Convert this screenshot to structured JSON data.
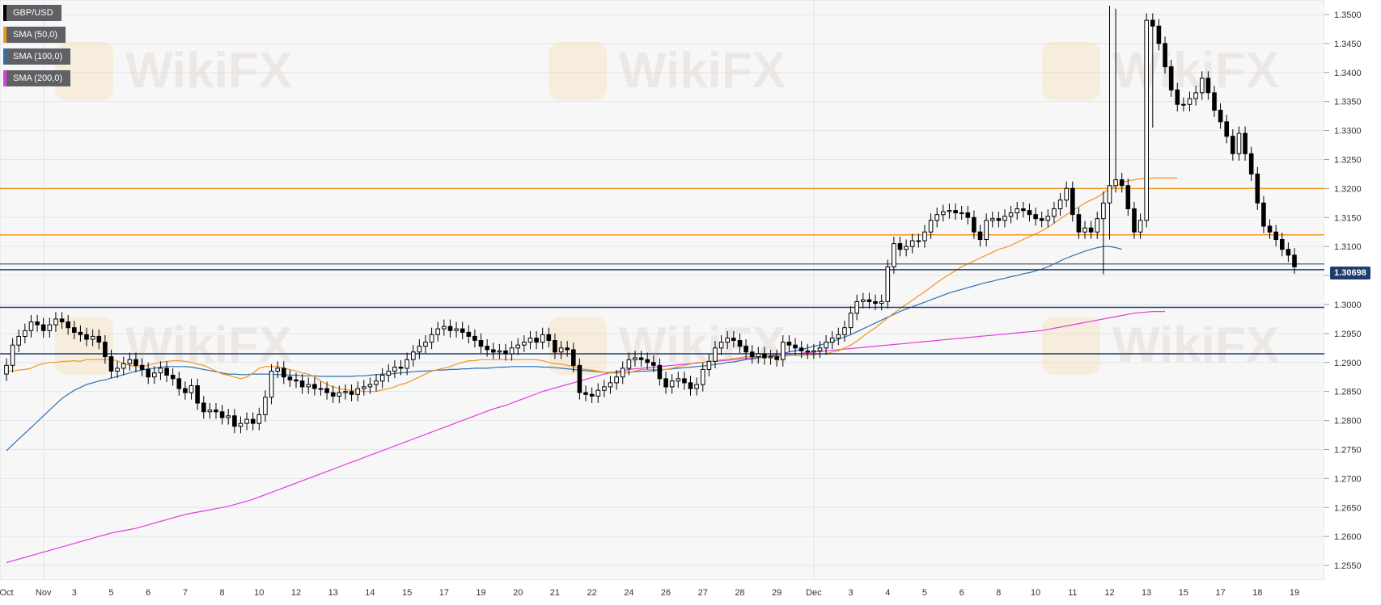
{
  "legend": [
    {
      "label": "GBP/USD",
      "color": "#000000"
    },
    {
      "label": "SMA (50,0)",
      "color": "#f2961e"
    },
    {
      "label": "SMA (100,0)",
      "color": "#2f6fb0"
    },
    {
      "label": "SMA (200,0)",
      "color": "#e23be0"
    }
  ],
  "watermark": "WikiFX",
  "current_price": "1.30698",
  "chart_data": {
    "type": "candlestick",
    "symbol": "GBP/USD",
    "y_ticks": [
      "1.3500",
      "1.3450",
      "1.3400",
      "1.3350",
      "1.3300",
      "1.3250",
      "1.3200",
      "1.3150",
      "1.3100",
      "1.3050",
      "1.3000",
      "1.2950",
      "1.2900",
      "1.2850",
      "1.2800",
      "1.2750",
      "1.2700",
      "1.2650",
      "1.2600",
      "1.2550"
    ],
    "ylim": [
      1.2525,
      1.3525
    ],
    "x_ticks": [
      {
        "i": 0,
        "label": "Oct"
      },
      {
        "i": 6,
        "label": "Nov"
      },
      {
        "i": 11,
        "label": "3"
      },
      {
        "i": 17,
        "label": "5"
      },
      {
        "i": 23,
        "label": "6"
      },
      {
        "i": 29,
        "label": "7"
      },
      {
        "i": 35,
        "label": "8"
      },
      {
        "i": 41,
        "label": "10"
      },
      {
        "i": 47,
        "label": "12"
      },
      {
        "i": 53,
        "label": "13"
      },
      {
        "i": 59,
        "label": "14"
      },
      {
        "i": 65,
        "label": "15"
      },
      {
        "i": 71,
        "label": "17"
      },
      {
        "i": 77,
        "label": "19"
      },
      {
        "i": 83,
        "label": "20"
      },
      {
        "i": 89,
        "label": "21"
      },
      {
        "i": 95,
        "label": "22"
      },
      {
        "i": 101,
        "label": "24"
      },
      {
        "i": 107,
        "label": "26"
      },
      {
        "i": 113,
        "label": "27"
      },
      {
        "i": 119,
        "label": "28"
      },
      {
        "i": 125,
        "label": "29"
      },
      {
        "i": 131,
        "label": "Dec"
      },
      {
        "i": 137,
        "label": "3"
      },
      {
        "i": 143,
        "label": "4"
      },
      {
        "i": 149,
        "label": "5"
      },
      {
        "i": 155,
        "label": "6"
      },
      {
        "i": 161,
        "label": "8"
      },
      {
        "i": 167,
        "label": "10"
      },
      {
        "i": 173,
        "label": "11"
      },
      {
        "i": 179,
        "label": "12"
      },
      {
        "i": 185,
        "label": "13"
      },
      {
        "i": 191,
        "label": "15"
      },
      {
        "i": 197,
        "label": "17"
      },
      {
        "i": 203,
        "label": "18"
      },
      {
        "i": 209,
        "label": "19"
      }
    ],
    "horizontal_levels": [
      {
        "value": 1.32,
        "color": "#f2961e"
      },
      {
        "value": 1.312,
        "color": "#f2961e"
      },
      {
        "value": 1.306,
        "color": "#1c3d6e"
      },
      {
        "value": 1.307,
        "color": "#6b7683"
      },
      {
        "value": 1.2995,
        "color": "#1c3d6e"
      },
      {
        "value": 1.2915,
        "color": "#1c3d6e"
      }
    ],
    "close": [
      1.2895,
      1.293,
      1.2945,
      1.2955,
      1.297,
      1.2965,
      1.2955,
      1.2965,
      1.2975,
      1.297,
      1.296,
      1.2952,
      1.2948,
      1.294,
      1.2945,
      1.2935,
      1.291,
      1.2885,
      1.289,
      1.2898,
      1.2905,
      1.2895,
      1.2888,
      1.2875,
      1.2882,
      1.289,
      1.2878,
      1.2872,
      1.2855,
      1.2848,
      1.286,
      1.283,
      1.2815,
      1.2818,
      1.2815,
      1.2805,
      1.2808,
      1.279,
      1.2795,
      1.2802,
      1.2795,
      1.281,
      1.284,
      1.2885,
      1.289,
      1.2875,
      1.287,
      1.2868,
      1.2858,
      1.2862,
      1.2855,
      1.2855,
      1.2848,
      1.2842,
      1.2848,
      1.285,
      1.2845,
      1.2855,
      1.2858,
      1.2862,
      1.2868,
      1.2878,
      1.2885,
      1.2892,
      1.289,
      1.2905,
      1.2918,
      1.2928,
      1.2935,
      1.2948,
      1.2958,
      1.2962,
      1.2955,
      1.2958,
      1.2952,
      1.2945,
      1.2938,
      1.2928,
      1.2922,
      1.2918,
      1.292,
      1.2915,
      1.2925,
      1.293,
      1.2935,
      1.2942,
      1.2935,
      1.2948,
      1.2938,
      1.2918,
      1.2925,
      1.2922,
      1.2895,
      1.2848,
      1.2845,
      1.2842,
      1.2852,
      1.2858,
      1.2865,
      1.2875,
      1.289,
      1.2905,
      1.2908,
      1.2905,
      1.29,
      1.2895,
      1.2872,
      1.2858,
      1.2868,
      1.2872,
      1.2865,
      1.2855,
      1.2862,
      1.2888,
      1.2902,
      1.2925,
      1.2935,
      1.2942,
      1.2938,
      1.2928,
      1.2918,
      1.291,
      1.2915,
      1.2908,
      1.291,
      1.2905,
      1.2935,
      1.293,
      1.2925,
      1.292,
      1.2918,
      1.292,
      1.2925,
      1.2935,
      1.2942,
      1.2948,
      1.296,
      1.2985,
      1.3005,
      1.3008,
      1.3005,
      1.3002,
      1.3005,
      1.3065,
      1.3105,
      1.3095,
      1.31,
      1.311,
      1.311,
      1.3125,
      1.3145,
      1.3155,
      1.316,
      1.3162,
      1.3158,
      1.3158,
      1.315,
      1.3125,
      1.3112,
      1.3145,
      1.3148,
      1.3145,
      1.3152,
      1.3158,
      1.3165,
      1.3162,
      1.3155,
      1.3148,
      1.3145,
      1.3152,
      1.3165,
      1.318,
      1.32,
      1.3155,
      1.3125,
      1.3132,
      1.3125,
      1.3148,
      1.3175,
      1.3205,
      1.3215,
      1.3205,
      1.3165,
      1.3125,
      1.3145,
      1.349,
      1.348,
      1.345,
      1.341,
      1.337,
      1.3345,
      1.3345,
      1.3355,
      1.3365,
      1.339,
      1.3365,
      1.3335,
      1.3315,
      1.329,
      1.326,
      1.3295,
      1.326,
      1.3225,
      1.3175,
      1.3135,
      1.3125,
      1.3112,
      1.3095,
      1.3085,
      1.3065
    ],
    "sma50": [
      1.2885,
      1.2885,
      1.2887,
      1.2888,
      1.289,
      1.2895,
      1.2898,
      1.29,
      1.29,
      1.2902,
      1.2902,
      1.2903,
      1.2902,
      1.2905,
      1.2905,
      1.2905,
      1.2905,
      1.2905,
      1.2903,
      1.2898,
      1.2895,
      1.2893,
      1.2893,
      1.2895,
      1.2898,
      1.29,
      1.2902,
      1.2903,
      1.2903,
      1.2902,
      1.29,
      1.2897,
      1.2895,
      1.289,
      1.2885,
      1.288,
      1.2878,
      1.2875,
      1.2872,
      1.2875,
      1.2882,
      1.289,
      1.2893,
      1.2893,
      1.2893,
      1.289,
      1.2888,
      1.2885,
      1.2882,
      1.288,
      1.2875,
      1.2868,
      1.2862,
      1.2858,
      1.2855,
      1.2853,
      1.2852,
      1.2852,
      1.285,
      1.285,
      1.285,
      1.2853,
      1.2855,
      1.2858,
      1.2862,
      1.2865,
      1.287,
      1.2875,
      1.288,
      1.2885,
      1.2888,
      1.289,
      1.2893,
      1.2897,
      1.29,
      1.2903,
      1.2903,
      1.2905,
      1.2905,
      1.2905,
      1.2905,
      1.2905,
      1.2905,
      1.2905,
      1.2905,
      1.2905,
      1.2905,
      1.2903,
      1.29,
      1.2898,
      1.2897,
      1.2895,
      1.2893,
      1.289,
      1.2888,
      1.2887,
      1.2885,
      1.2883,
      1.2882,
      1.2882,
      1.2882,
      1.2883,
      1.2885,
      1.2888,
      1.2888,
      1.2888,
      1.2888,
      1.2888,
      1.289,
      1.2893,
      1.2895,
      1.2897,
      1.29,
      1.29,
      1.2902,
      1.2902,
      1.2905,
      1.2905,
      1.2907,
      1.2908,
      1.291,
      1.291,
      1.291,
      1.291,
      1.291,
      1.291,
      1.291,
      1.2912,
      1.2912,
      1.2912,
      1.2913,
      1.2913,
      1.2915,
      1.2915,
      1.2918,
      1.292,
      1.2925,
      1.293,
      1.2937,
      1.2945,
      1.2953,
      1.296,
      1.2968,
      1.2977,
      1.2985,
      1.2993,
      1.3,
      1.3007,
      1.3015,
      1.3022,
      1.303,
      1.3038,
      1.3045,
      1.3052,
      1.3058,
      1.3065,
      1.307,
      1.3075,
      1.308,
      1.3085,
      1.309,
      1.3095,
      1.3098,
      1.3102,
      1.3107,
      1.3112,
      1.3117,
      1.3122,
      1.3127,
      1.3133,
      1.314,
      1.3148,
      1.3155,
      1.3162,
      1.3168,
      1.3175,
      1.318,
      1.3185,
      1.3192,
      1.32,
      1.3205,
      1.321,
      1.3213,
      1.3215,
      1.3217,
      1.3217,
      1.3218,
      1.3218,
      1.3218,
      1.3218,
      1.3218
    ],
    "sma100": [
      1.2748,
      1.2758,
      1.2768,
      1.2778,
      1.2788,
      1.2798,
      1.2808,
      1.2818,
      1.2828,
      1.2838,
      1.2845,
      1.2852,
      1.2857,
      1.2862,
      1.2865,
      1.2868,
      1.287,
      1.2873,
      1.2876,
      1.2879,
      1.2882,
      1.2885,
      1.2887,
      1.2889,
      1.289,
      1.2892,
      1.2893,
      1.2893,
      1.2893,
      1.2893,
      1.2892,
      1.289,
      1.2888,
      1.2886,
      1.2884,
      1.2882,
      1.288,
      1.288,
      1.2879,
      1.2879,
      1.288,
      1.288,
      1.288,
      1.288,
      1.2879,
      1.2879,
      1.2878,
      1.2878,
      1.2877,
      1.2877,
      1.2877,
      1.2876,
      1.2876,
      1.2876,
      1.2876,
      1.2876,
      1.2876,
      1.2877,
      1.2877,
      1.2878,
      1.2879,
      1.288,
      1.288,
      1.2881,
      1.2882,
      1.2883,
      1.2884,
      1.2885,
      1.2885,
      1.2886,
      1.2887,
      1.2887,
      1.2888,
      1.2888,
      1.2889,
      1.2889,
      1.289,
      1.289,
      1.289,
      1.2891,
      1.2892,
      1.2892,
      1.2893,
      1.2893,
      1.2893,
      1.2893,
      1.2893,
      1.2892,
      1.2892,
      1.2891,
      1.289,
      1.2889,
      1.2888,
      1.2887,
      1.2886,
      1.2885,
      1.2884,
      1.2883,
      1.2883,
      1.2883,
      1.2883,
      1.2883,
      1.2884,
      1.2885,
      1.2885,
      1.2886,
      1.2887,
      1.2888,
      1.2889,
      1.289,
      1.2891,
      1.2892,
      1.2893,
      1.2894,
      1.2895,
      1.2897,
      1.2898,
      1.29,
      1.2901,
      1.2903,
      1.2905,
      1.2906,
      1.2908,
      1.291,
      1.2912,
      1.2914,
      1.2916,
      1.2918,
      1.292,
      1.2922,
      1.2925,
      1.2928,
      1.293,
      1.2933,
      1.2936,
      1.294,
      1.2944,
      1.2948,
      1.2953,
      1.2958,
      1.2963,
      1.2968,
      1.2973,
      1.2978,
      1.2983,
      1.2988,
      1.2992,
      1.2996,
      1.3,
      1.3004,
      1.3008,
      1.3012,
      1.3016,
      1.302,
      1.3023,
      1.3026,
      1.3029,
      1.3032,
      1.3035,
      1.3038,
      1.304,
      1.3043,
      1.3045,
      1.3048,
      1.305,
      1.3053,
      1.3055,
      1.3058,
      1.3061,
      1.3065,
      1.307,
      1.3075,
      1.308,
      1.3084,
      1.3088,
      1.3092,
      1.3095,
      1.3098,
      1.31,
      1.31,
      1.3098,
      1.3095
    ],
    "sma200": [
      1.2555,
      1.2558,
      1.2561,
      1.2564,
      1.2567,
      1.257,
      1.2573,
      1.2576,
      1.2579,
      1.2582,
      1.2585,
      1.2588,
      1.2591,
      1.2594,
      1.2597,
      1.26,
      1.2603,
      1.2606,
      1.2608,
      1.261,
      1.2612,
      1.2614,
      1.2617,
      1.262,
      1.2623,
      1.2626,
      1.2629,
      1.2632,
      1.2635,
      1.2638,
      1.264,
      1.2642,
      1.2644,
      1.2646,
      1.2648,
      1.265,
      1.2652,
      1.2655,
      1.2658,
      1.2661,
      1.2664,
      1.2668,
      1.2672,
      1.2676,
      1.268,
      1.2684,
      1.2688,
      1.2692,
      1.2696,
      1.27,
      1.2704,
      1.2708,
      1.2712,
      1.2716,
      1.272,
      1.2724,
      1.2728,
      1.2732,
      1.2736,
      1.274,
      1.2744,
      1.2748,
      1.2752,
      1.2756,
      1.276,
      1.2764,
      1.2768,
      1.2772,
      1.2776,
      1.278,
      1.2784,
      1.2788,
      1.2792,
      1.2796,
      1.28,
      1.2804,
      1.2808,
      1.2812,
      1.2816,
      1.282,
      1.2823,
      1.2826,
      1.283,
      1.2834,
      1.2838,
      1.2842,
      1.2846,
      1.285,
      1.2853,
      1.2856,
      1.2859,
      1.2862,
      1.2865,
      1.2868,
      1.2871,
      1.2874,
      1.2877,
      1.288,
      1.2882,
      1.2884,
      1.2886,
      1.2888,
      1.2889,
      1.289,
      1.2891,
      1.2892,
      1.2893,
      1.2894,
      1.2895,
      1.2896,
      1.2897,
      1.2898,
      1.2899,
      1.29,
      1.2901,
      1.2902,
      1.2903,
      1.2904,
      1.2905,
      1.2906,
      1.2907,
      1.2908,
      1.2909,
      1.291,
      1.2911,
      1.2912,
      1.2913,
      1.2914,
      1.2915,
      1.2916,
      1.2917,
      1.2918,
      1.2919,
      1.292,
      1.2921,
      1.2922,
      1.2923,
      1.2924,
      1.2925,
      1.2926,
      1.2927,
      1.2928,
      1.2929,
      1.293,
      1.2931,
      1.2932,
      1.2933,
      1.2934,
      1.2935,
      1.2936,
      1.2937,
      1.2938,
      1.2939,
      1.294,
      1.2941,
      1.2942,
      1.2943,
      1.2944,
      1.2945,
      1.2946,
      1.2947,
      1.2948,
      1.2949,
      1.295,
      1.2951,
      1.2952,
      1.2953,
      1.2954,
      1.2955,
      1.2957,
      1.2959,
      1.2961,
      1.2963,
      1.2965,
      1.2967,
      1.2969,
      1.2971,
      1.2973,
      1.2975,
      1.2977,
      1.2979,
      1.2981,
      1.2983,
      1.2985,
      1.2986,
      1.2987,
      1.2988,
      1.2988,
      1.2988
    ]
  }
}
